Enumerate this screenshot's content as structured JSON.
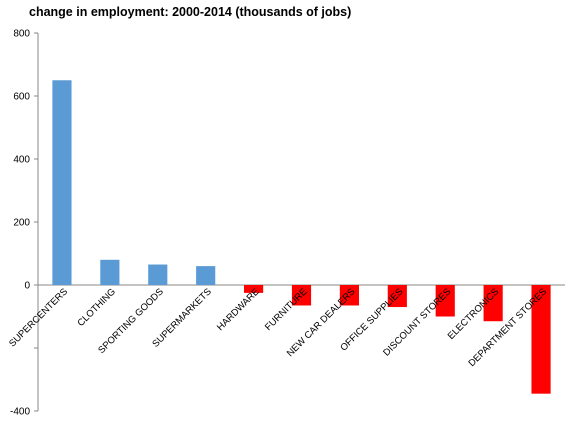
{
  "chart_data": {
    "type": "bar",
    "title": "change in employment: 2000-2014 (thousands of jobs)",
    "xlabel": "",
    "ylabel": "",
    "ylim": [
      -400,
      800
    ],
    "yticks": [
      -400,
      -200,
      0,
      200,
      400,
      600,
      800
    ],
    "tick_labels": [
      "-400",
      "",
      "0",
      "200",
      "400",
      "600",
      "800"
    ],
    "grid": false,
    "legend": "none",
    "categories": [
      "SUPERCENTERS",
      "CLOTHING",
      "SPORTING GOODS",
      "SUPERMARKETS",
      "HARDWARE",
      "FURNITURE",
      "NEW CAR DEALERS",
      "OFFICE SUPPLIES",
      "DISCOUNT STORES",
      "ELECTRONICS",
      "DEPARTMENT STORES"
    ],
    "values": [
      650,
      80,
      65,
      60,
      -25,
      -65,
      -65,
      -70,
      -100,
      -115,
      -345
    ],
    "colors": {
      "positive": "#5b9bd5",
      "negative": "#ff0000"
    }
  }
}
